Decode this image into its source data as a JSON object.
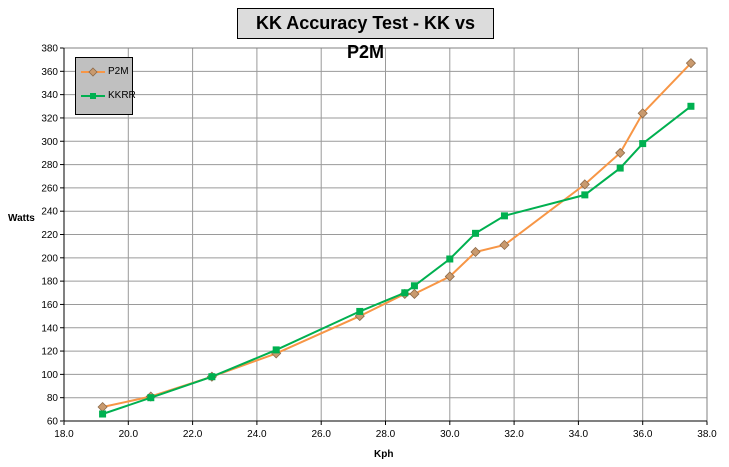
{
  "chart_data": {
    "type": "line",
    "title": "KK Accuracy Test - KK vs P2M",
    "xlabel": "Kph",
    "ylabel": "Watts",
    "xlim": [
      18.0,
      38.0
    ],
    "ylim": [
      60,
      380
    ],
    "x_ticks": [
      "18.0",
      "20.0",
      "22.0",
      "24.0",
      "26.0",
      "28.0",
      "30.0",
      "32.0",
      "34.0",
      "36.0",
      "38.0"
    ],
    "y_ticks": [
      "60",
      "80",
      "100",
      "120",
      "140",
      "160",
      "180",
      "200",
      "220",
      "240",
      "260",
      "280",
      "300",
      "320",
      "340",
      "360",
      "380"
    ],
    "grid": true,
    "legend_position": "top-left",
    "series": [
      {
        "name": "P2M",
        "color": "#f79646",
        "marker": "diamond",
        "marker_fill": "#c99a6e",
        "points": [
          [
            19.2,
            72
          ],
          [
            20.7,
            81
          ],
          [
            22.6,
            98
          ],
          [
            24.6,
            118
          ],
          [
            27.2,
            150
          ],
          [
            28.6,
            169
          ],
          [
            28.9,
            169
          ],
          [
            30.0,
            184
          ],
          [
            30.8,
            205
          ],
          [
            31.7,
            211
          ],
          [
            34.2,
            263
          ],
          [
            35.3,
            290
          ],
          [
            36.0,
            324
          ],
          [
            37.5,
            367
          ]
        ]
      },
      {
        "name": "KKRR",
        "color": "#00b050",
        "marker": "square",
        "marker_fill": "#00b050",
        "points": [
          [
            19.2,
            66
          ],
          [
            20.7,
            80
          ],
          [
            22.6,
            98
          ],
          [
            24.6,
            121
          ],
          [
            27.2,
            154
          ],
          [
            28.6,
            170
          ],
          [
            28.9,
            176
          ],
          [
            30.0,
            199
          ],
          [
            30.8,
            221
          ],
          [
            31.7,
            236
          ],
          [
            34.2,
            254
          ],
          [
            35.3,
            277
          ],
          [
            36.0,
            298
          ],
          [
            37.5,
            330
          ]
        ]
      }
    ]
  }
}
